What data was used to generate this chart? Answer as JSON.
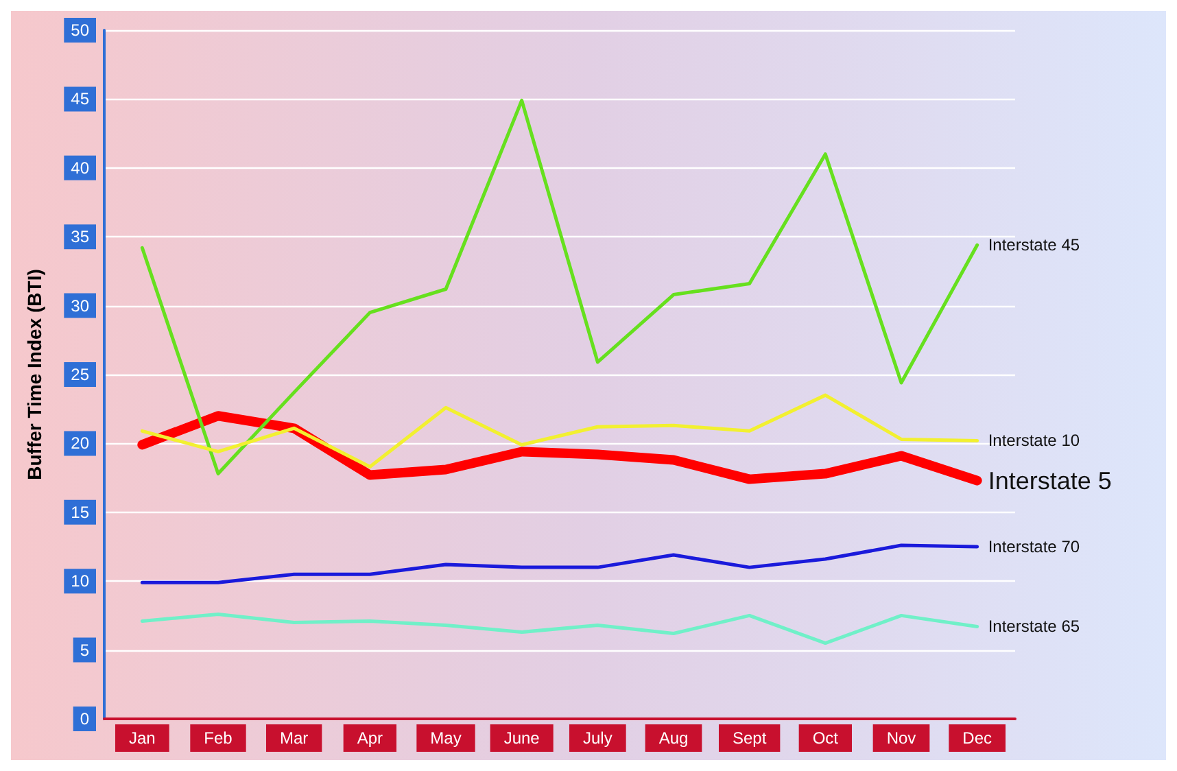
{
  "chart_data": {
    "type": "line",
    "ylabel": "Buffer Time Index (BTI)",
    "categories": [
      "Jan",
      "Feb",
      "Mar",
      "Apr",
      "May",
      "June",
      "July",
      "Aug",
      "Sept",
      "Oct",
      "Nov",
      "Dec"
    ],
    "ylim": [
      0,
      50
    ],
    "yticks": [
      0,
      5,
      10,
      15,
      20,
      25,
      30,
      35,
      40,
      45,
      50
    ],
    "grid": "y",
    "legend": false,
    "marker": "none",
    "line_style": "solid",
    "series": [
      {
        "name": "Interstate 45",
        "color": "#66e01e",
        "values": [
          34.2,
          17.8,
          23.7,
          29.5,
          31.2,
          44.9,
          25.9,
          30.8,
          31.6,
          41,
          24.4,
          34.4
        ]
      },
      {
        "name": "Interstate 10",
        "color": "#f2f030",
        "values": [
          20.9,
          19.4,
          21.1,
          18.3,
          22.6,
          19.9,
          21.2,
          21.3,
          20.9,
          23.5,
          20.3,
          20.2
        ]
      },
      {
        "name": "Interstate 5",
        "color": "#ff0000",
        "values": [
          19.9,
          22.0,
          21.1,
          17.7,
          18.1,
          19.4,
          19.2,
          18.8,
          17.4,
          17.8,
          19.1,
          17.3
        ]
      },
      {
        "name": "Interstate 70",
        "color": "#1a1adb",
        "values": [
          9.9,
          9.9,
          10.5,
          10.5,
          11.2,
          11.0,
          11.0,
          11.9,
          11.0,
          11.6,
          12.6,
          12.5
        ]
      },
      {
        "name": "Interstate 65",
        "color": "#70f0c8",
        "values": [
          7.1,
          7.6,
          7.0,
          7.1,
          6.8,
          6.3,
          6.8,
          6.2,
          7.5,
          5.5,
          7.5,
          6.7
        ]
      }
    ]
  }
}
